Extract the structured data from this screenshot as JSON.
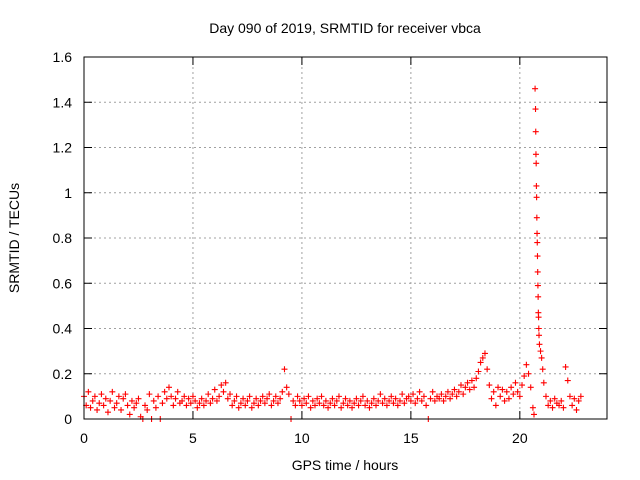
{
  "chart_data": {
    "type": "scatter",
    "title": "Day 090 of 2019, SRMTID for receiver vbca",
    "xlabel": "GPS time / hours",
    "ylabel": "SRMTID / TECUs",
    "xlim": [
      0,
      24
    ],
    "ylim": [
      0,
      1.6
    ],
    "xticks": [
      0,
      5,
      10,
      15,
      20
    ],
    "xtick_labels": [
      "0",
      "5",
      "10",
      "15",
      "20"
    ],
    "yticks": [
      0,
      0.2,
      0.4,
      0.6,
      0.8,
      1.0,
      1.2,
      1.4,
      1.6
    ],
    "ytick_labels": [
      "0",
      "0.2",
      "0.4",
      "0.6",
      "0.8",
      "1",
      "1.2",
      "1.4",
      "1.6"
    ],
    "grid": true,
    "marker": "+",
    "color": "#ff0000",
    "series": [
      {
        "name": "SRMTID",
        "points": [
          [
            0.0,
            0.1
          ],
          [
            0.1,
            0.06
          ],
          [
            0.2,
            0.12
          ],
          [
            0.3,
            0.05
          ],
          [
            0.4,
            0.08
          ],
          [
            0.5,
            0.1
          ],
          [
            0.6,
            0.04
          ],
          [
            0.7,
            0.07
          ],
          [
            0.8,
            0.11
          ],
          [
            0.9,
            0.06
          ],
          [
            1.0,
            0.09
          ],
          [
            1.1,
            0.03
          ],
          [
            1.2,
            0.08
          ],
          [
            1.3,
            0.12
          ],
          [
            1.4,
            0.05
          ],
          [
            1.5,
            0.07
          ],
          [
            1.6,
            0.1
          ],
          [
            1.7,
            0.04
          ],
          [
            1.8,
            0.09
          ],
          [
            1.9,
            0.11
          ],
          [
            2.0,
            0.06
          ],
          [
            2.1,
            0.02
          ],
          [
            2.2,
            0.08
          ],
          [
            2.3,
            0.05
          ],
          [
            2.4,
            0.07
          ],
          [
            2.5,
            0.09
          ],
          [
            2.6,
            0.01
          ],
          [
            2.7,
            0.0
          ],
          [
            2.8,
            0.06
          ],
          [
            2.9,
            0.04
          ],
          [
            3.0,
            0.11
          ],
          [
            3.1,
            0.0
          ],
          [
            3.2,
            0.08
          ],
          [
            3.3,
            0.05
          ],
          [
            3.4,
            0.1
          ],
          [
            3.5,
            0.0
          ],
          [
            3.6,
            0.07
          ],
          [
            3.7,
            0.12
          ],
          [
            3.8,
            0.09
          ],
          [
            3.9,
            0.14
          ],
          [
            4.0,
            0.1
          ],
          [
            4.1,
            0.06
          ],
          [
            4.2,
            0.09
          ],
          [
            4.3,
            0.12
          ],
          [
            4.4,
            0.07
          ],
          [
            4.5,
            0.08
          ],
          [
            4.6,
            0.1
          ],
          [
            4.7,
            0.06
          ],
          [
            4.8,
            0.09
          ],
          [
            4.9,
            0.07
          ],
          [
            5.0,
            0.1
          ],
          [
            5.1,
            0.08
          ],
          [
            5.2,
            0.05
          ],
          [
            5.3,
            0.07
          ],
          [
            5.4,
            0.09
          ],
          [
            5.5,
            0.06
          ],
          [
            5.6,
            0.08
          ],
          [
            5.7,
            0.11
          ],
          [
            5.8,
            0.07
          ],
          [
            5.9,
            0.09
          ],
          [
            6.0,
            0.13
          ],
          [
            6.1,
            0.08
          ],
          [
            6.2,
            0.1
          ],
          [
            6.3,
            0.15
          ],
          [
            6.4,
            0.12
          ],
          [
            6.5,
            0.16
          ],
          [
            6.6,
            0.09
          ],
          [
            6.7,
            0.11
          ],
          [
            6.8,
            0.06
          ],
          [
            6.9,
            0.08
          ],
          [
            7.0,
            0.1
          ],
          [
            7.1,
            0.05
          ],
          [
            7.2,
            0.07
          ],
          [
            7.3,
            0.09
          ],
          [
            7.4,
            0.06
          ],
          [
            7.5,
            0.08
          ],
          [
            7.6,
            0.1
          ],
          [
            7.7,
            0.05
          ],
          [
            7.8,
            0.07
          ],
          [
            7.9,
            0.09
          ],
          [
            8.0,
            0.06
          ],
          [
            8.1,
            0.08
          ],
          [
            8.2,
            0.1
          ],
          [
            8.3,
            0.07
          ],
          [
            8.4,
            0.09
          ],
          [
            8.5,
            0.11
          ],
          [
            8.6,
            0.06
          ],
          [
            8.7,
            0.08
          ],
          [
            8.8,
            0.1
          ],
          [
            8.9,
            0.07
          ],
          [
            9.0,
            0.09
          ],
          [
            9.1,
            0.12
          ],
          [
            9.2,
            0.22
          ],
          [
            9.3,
            0.14
          ],
          [
            9.4,
            0.11
          ],
          [
            9.5,
            0.0
          ],
          [
            9.6,
            0.08
          ],
          [
            9.7,
            0.06
          ],
          [
            9.8,
            0.1
          ],
          [
            9.9,
            0.08
          ],
          [
            10.0,
            0.06
          ],
          [
            10.1,
            0.09
          ],
          [
            10.2,
            0.07
          ],
          [
            10.3,
            0.1
          ],
          [
            10.4,
            0.05
          ],
          [
            10.5,
            0.08
          ],
          [
            10.6,
            0.06
          ],
          [
            10.7,
            0.09
          ],
          [
            10.8,
            0.07
          ],
          [
            10.9,
            0.1
          ],
          [
            11.0,
            0.06
          ],
          [
            11.1,
            0.08
          ],
          [
            11.2,
            0.05
          ],
          [
            11.3,
            0.07
          ],
          [
            11.4,
            0.09
          ],
          [
            11.5,
            0.06
          ],
          [
            11.6,
            0.08
          ],
          [
            11.7,
            0.1
          ],
          [
            11.8,
            0.05
          ],
          [
            11.9,
            0.07
          ],
          [
            12.0,
            0.09
          ],
          [
            12.1,
            0.06
          ],
          [
            12.2,
            0.08
          ],
          [
            12.3,
            0.05
          ],
          [
            12.4,
            0.07
          ],
          [
            12.5,
            0.09
          ],
          [
            12.6,
            0.06
          ],
          [
            12.7,
            0.08
          ],
          [
            12.8,
            0.1
          ],
          [
            12.9,
            0.06
          ],
          [
            13.0,
            0.08
          ],
          [
            13.1,
            0.05
          ],
          [
            13.2,
            0.07
          ],
          [
            13.3,
            0.09
          ],
          [
            13.4,
            0.06
          ],
          [
            13.5,
            0.08
          ],
          [
            13.6,
            0.11
          ],
          [
            13.7,
            0.07
          ],
          [
            13.8,
            0.09
          ],
          [
            13.9,
            0.06
          ],
          [
            14.0,
            0.08
          ],
          [
            14.1,
            0.1
          ],
          [
            14.2,
            0.07
          ],
          [
            14.3,
            0.09
          ],
          [
            14.4,
            0.06
          ],
          [
            14.5,
            0.08
          ],
          [
            14.6,
            0.11
          ],
          [
            14.7,
            0.07
          ],
          [
            14.8,
            0.09
          ],
          [
            14.9,
            0.1
          ],
          [
            15.0,
            0.08
          ],
          [
            15.1,
            0.11
          ],
          [
            15.2,
            0.07
          ],
          [
            15.3,
            0.09
          ],
          [
            15.4,
            0.12
          ],
          [
            15.5,
            0.08
          ],
          [
            15.6,
            0.1
          ],
          [
            15.7,
            0.06
          ],
          [
            15.8,
            0.0
          ],
          [
            15.9,
            0.09
          ],
          [
            16.0,
            0.12
          ],
          [
            16.1,
            0.08
          ],
          [
            16.2,
            0.1
          ],
          [
            16.3,
            0.09
          ],
          [
            16.4,
            0.11
          ],
          [
            16.5,
            0.08
          ],
          [
            16.6,
            0.1
          ],
          [
            16.7,
            0.12
          ],
          [
            16.8,
            0.09
          ],
          [
            16.9,
            0.11
          ],
          [
            17.0,
            0.13
          ],
          [
            17.1,
            0.1
          ],
          [
            17.2,
            0.12
          ],
          [
            17.3,
            0.15
          ],
          [
            17.4,
            0.11
          ],
          [
            17.5,
            0.14
          ],
          [
            17.6,
            0.16
          ],
          [
            17.7,
            0.13
          ],
          [
            17.8,
            0.17
          ],
          [
            17.9,
            0.14
          ],
          [
            18.0,
            0.18
          ],
          [
            18.1,
            0.21
          ],
          [
            18.2,
            0.25
          ],
          [
            18.3,
            0.27
          ],
          [
            18.4,
            0.29
          ],
          [
            18.5,
            0.22
          ],
          [
            18.6,
            0.15
          ],
          [
            18.7,
            0.09
          ],
          [
            18.8,
            0.12
          ],
          [
            18.9,
            0.06
          ],
          [
            19.0,
            0.14
          ],
          [
            19.1,
            0.1
          ],
          [
            19.2,
            0.13
          ],
          [
            19.3,
            0.08
          ],
          [
            19.4,
            0.12
          ],
          [
            19.5,
            0.09
          ],
          [
            19.6,
            0.14
          ],
          [
            19.7,
            0.11
          ],
          [
            19.8,
            0.16
          ],
          [
            19.9,
            0.12
          ],
          [
            20.0,
            0.1
          ],
          [
            20.1,
            0.15
          ],
          [
            20.2,
            0.19
          ],
          [
            20.3,
            0.24
          ],
          [
            20.4,
            0.2
          ],
          [
            20.5,
            0.14
          ],
          [
            20.6,
            0.05
          ],
          [
            20.65,
            0.02
          ],
          [
            20.7,
            1.46
          ],
          [
            20.72,
            1.37
          ],
          [
            20.73,
            1.27
          ],
          [
            20.74,
            1.17
          ],
          [
            20.75,
            1.13
          ],
          [
            20.76,
            1.03
          ],
          [
            20.77,
            0.98
          ],
          [
            20.78,
            0.89
          ],
          [
            20.79,
            0.82
          ],
          [
            20.8,
            0.78
          ],
          [
            20.81,
            0.72
          ],
          [
            20.82,
            0.65
          ],
          [
            20.83,
            0.59
          ],
          [
            20.84,
            0.54
          ],
          [
            20.85,
            0.47
          ],
          [
            20.86,
            0.45
          ],
          [
            20.87,
            0.4
          ],
          [
            20.88,
            0.37
          ],
          [
            20.9,
            0.33
          ],
          [
            20.95,
            0.3
          ],
          [
            21.0,
            0.27
          ],
          [
            21.05,
            0.22
          ],
          [
            21.1,
            0.16
          ],
          [
            21.2,
            0.1
          ],
          [
            21.3,
            0.06
          ],
          [
            21.4,
            0.08
          ],
          [
            21.5,
            0.05
          ],
          [
            21.6,
            0.09
          ],
          [
            21.7,
            0.07
          ],
          [
            21.8,
            0.06
          ],
          [
            21.9,
            0.08
          ],
          [
            22.0,
            0.05
          ],
          [
            22.1,
            0.23
          ],
          [
            22.2,
            0.17
          ],
          [
            22.3,
            0.1
          ],
          [
            22.4,
            0.06
          ],
          [
            22.5,
            0.09
          ],
          [
            22.6,
            0.04
          ],
          [
            22.7,
            0.08
          ],
          [
            22.8,
            0.1
          ]
        ]
      }
    ]
  }
}
